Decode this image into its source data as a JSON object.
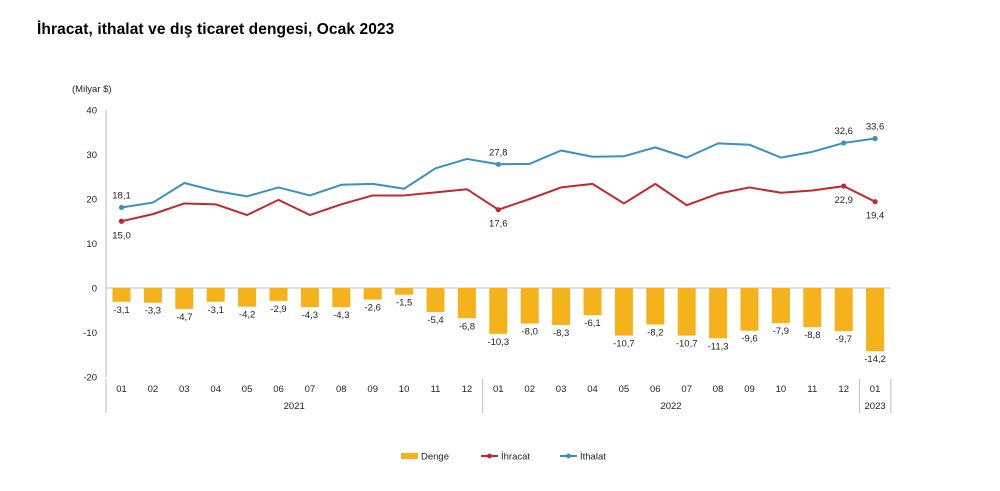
{
  "chart_data": {
    "type": "bar+line",
    "title": "İhracat, ithalat ve dış ticaret dengesi, Ocak 2023",
    "unit_label": "(Milyar $)",
    "ylim": [
      -20,
      40
    ],
    "yticks": [
      40,
      30,
      20,
      10,
      0,
      -10,
      -20
    ],
    "grid": false,
    "legend_placement": "bottom",
    "months": [
      "01",
      "02",
      "03",
      "04",
      "05",
      "06",
      "07",
      "08",
      "09",
      "10",
      "11",
      "12",
      "01",
      "02",
      "03",
      "04",
      "05",
      "06",
      "07",
      "08",
      "09",
      "10",
      "11",
      "12",
      "01"
    ],
    "years": [
      {
        "label": "2021",
        "start": 0,
        "end": 11
      },
      {
        "label": "2022",
        "start": 12,
        "end": 23
      },
      {
        "label": "2023",
        "start": 24,
        "end": 24
      }
    ],
    "series": [
      {
        "name": "Denge",
        "kind": "bar",
        "color": "#F5B21B",
        "values": [
          -3.1,
          -3.3,
          -4.7,
          -3.1,
          -4.2,
          -2.9,
          -4.3,
          -4.3,
          -2.6,
          -1.5,
          -5.4,
          -6.8,
          -10.3,
          -8.0,
          -8.3,
          -6.1,
          -10.7,
          -8.2,
          -10.7,
          -11.3,
          -9.6,
          -7.9,
          -8.8,
          -9.7,
          -14.2
        ],
        "labels": [
          "-3,1",
          "-3,3",
          "-4,7",
          "-3,1",
          "-4,2",
          "-2,9",
          "-4,3",
          "-4,3",
          "-2,6",
          "-1,5",
          "-5,4",
          "-6,8",
          "-10,3",
          "-8,0",
          "-8,3",
          "-6,1",
          "-10,7",
          "-8,2",
          "-10,7",
          "-11,3",
          "-9,6",
          "-7,9",
          "-8,8",
          "-9,7",
          "-14,2"
        ]
      },
      {
        "name": "İhracat",
        "kind": "line",
        "color": "#C0282D",
        "values": [
          15.0,
          16.6,
          19.0,
          18.8,
          16.4,
          19.8,
          16.4,
          18.8,
          20.8,
          20.8,
          21.5,
          22.2,
          17.6,
          20.0,
          22.6,
          23.4,
          19.0,
          23.4,
          18.6,
          21.2,
          22.6,
          21.4,
          21.9,
          22.9,
          19.4
        ],
        "labeled": [
          {
            "index": 0,
            "text": "15,0",
            "pos": "below"
          },
          {
            "index": 12,
            "text": "17,6",
            "pos": "below"
          },
          {
            "index": 23,
            "text": "22,9",
            "pos": "below"
          },
          {
            "index": 24,
            "text": "19,4",
            "pos": "below"
          }
        ]
      },
      {
        "name": "İthalat",
        "kind": "line",
        "color": "#3B8FC4",
        "values": [
          18.1,
          19.2,
          23.6,
          21.8,
          20.6,
          22.6,
          20.8,
          23.2,
          23.4,
          22.3,
          26.9,
          29.0,
          27.8,
          27.9,
          30.9,
          29.5,
          29.6,
          31.6,
          29.3,
          32.5,
          32.2,
          29.3,
          30.6,
          32.6,
          33.6
        ],
        "labeled": [
          {
            "index": 0,
            "text": "18,1",
            "pos": "above"
          },
          {
            "index": 12,
            "text": "27,8",
            "pos": "above"
          },
          {
            "index": 23,
            "text": "32,6",
            "pos": "above"
          },
          {
            "index": 24,
            "text": "33,6",
            "pos": "above"
          }
        ]
      }
    ]
  }
}
